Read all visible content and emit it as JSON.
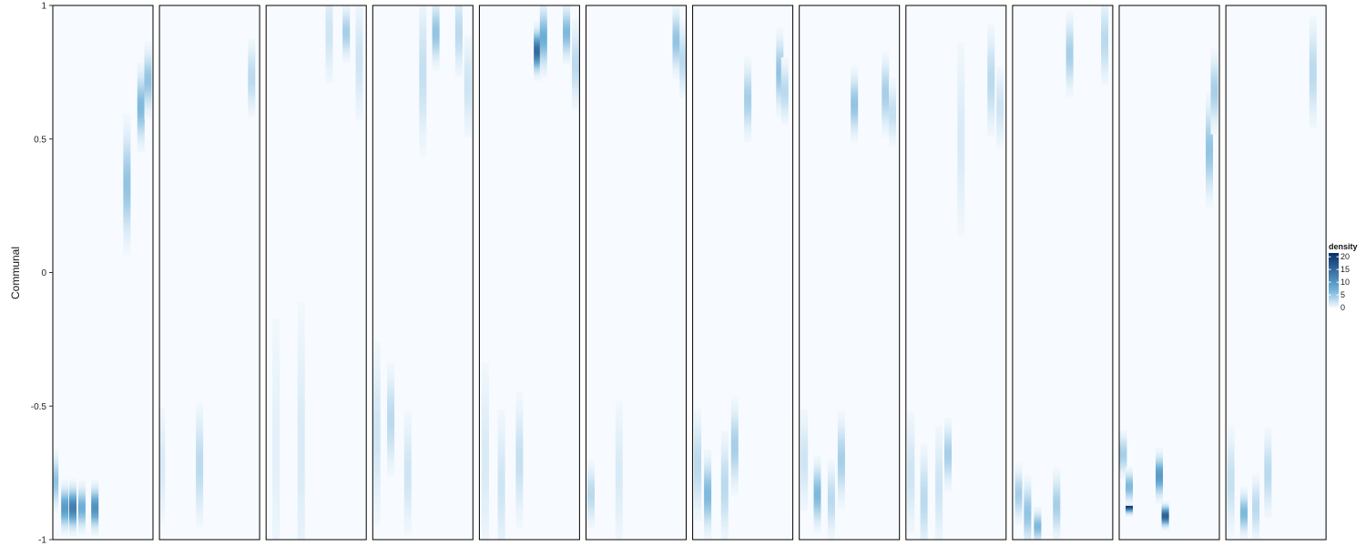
{
  "chart_data": {
    "type": "heatmap",
    "title": "",
    "xlabel": "",
    "ylabel": "Communal",
    "ylim": [
      -1,
      1
    ],
    "yticks": [
      1,
      0.5,
      0,
      -0.5,
      -1
    ],
    "ytick_labels": [
      "1",
      "0.5",
      "0",
      "-0.5",
      "-1"
    ],
    "grid": false,
    "facets": 12,
    "color_scale": {
      "name": "density",
      "min": 0,
      "max": 20,
      "low_color": "#f7fbff",
      "high_color": "#08306b",
      "breaks": [
        0,
        5,
        10,
        15,
        20
      ],
      "break_labels": [
        "0",
        "5",
        "10",
        "15",
        "20"
      ]
    },
    "legend_position": "right",
    "series": [
      {
        "columns": [
          {
            "x": 0.02,
            "y": -0.78,
            "sd": 0.05,
            "density": 5
          },
          {
            "x": 0.12,
            "y": -0.88,
            "sd": 0.04,
            "density": 9
          },
          {
            "x": 0.2,
            "y": -0.88,
            "sd": 0.04,
            "density": 12
          },
          {
            "x": 0.29,
            "y": -0.88,
            "sd": 0.04,
            "density": 7
          },
          {
            "x": 0.42,
            "y": -0.88,
            "sd": 0.04,
            "density": 10
          },
          {
            "x": 0.74,
            "y": 0.33,
            "sd": 0.11,
            "density": 5
          },
          {
            "x": 0.88,
            "y": 0.62,
            "sd": 0.07,
            "density": 6
          },
          {
            "x": 0.95,
            "y": 0.72,
            "sd": 0.06,
            "density": 5
          }
        ]
      },
      {
        "columns": [
          {
            "x": 0.02,
            "y": -0.72,
            "sd": 0.12,
            "density": 1.5
          },
          {
            "x": 0.4,
            "y": -0.72,
            "sd": 0.11,
            "density": 3
          },
          {
            "x": 0.92,
            "y": 0.73,
            "sd": 0.07,
            "density": 3
          }
        ]
      },
      {
        "columns": [
          {
            "x": 0.1,
            "y": -0.65,
            "sd": 0.3,
            "density": 1
          },
          {
            "x": 0.35,
            "y": -0.65,
            "sd": 0.3,
            "density": 1.5
          },
          {
            "x": 0.63,
            "y": 0.9,
            "sd": 0.1,
            "density": 2
          },
          {
            "x": 0.8,
            "y": 0.9,
            "sd": 0.05,
            "density": 4
          },
          {
            "x": 0.93,
            "y": 0.8,
            "sd": 0.12,
            "density": 2
          }
        ]
      },
      {
        "columns": [
          {
            "x": 0.04,
            "y": -0.6,
            "sd": 0.18,
            "density": 2
          },
          {
            "x": 0.18,
            "y": -0.55,
            "sd": 0.1,
            "density": 3
          },
          {
            "x": 0.35,
            "y": -0.75,
            "sd": 0.12,
            "density": 2
          },
          {
            "x": 0.5,
            "y": 0.75,
            "sd": 0.15,
            "density": 2.5
          },
          {
            "x": 0.63,
            "y": 0.9,
            "sd": 0.06,
            "density": 5
          },
          {
            "x": 0.86,
            "y": 0.9,
            "sd": 0.08,
            "density": 3
          },
          {
            "x": 0.95,
            "y": 0.7,
            "sd": 0.1,
            "density": 2
          }
        ]
      },
      {
        "columns": [
          {
            "x": 0.06,
            "y": -0.7,
            "sd": 0.2,
            "density": 1.5
          },
          {
            "x": 0.22,
            "y": -0.8,
            "sd": 0.15,
            "density": 2
          },
          {
            "x": 0.4,
            "y": -0.7,
            "sd": 0.12,
            "density": 2.5
          },
          {
            "x": 0.58,
            "y": 0.83,
            "sd": 0.04,
            "density": 14
          },
          {
            "x": 0.64,
            "y": 0.88,
            "sd": 0.06,
            "density": 7
          },
          {
            "x": 0.87,
            "y": 0.9,
            "sd": 0.05,
            "density": 6
          },
          {
            "x": 0.96,
            "y": 0.78,
            "sd": 0.08,
            "density": 3
          }
        ]
      },
      {
        "columns": [
          {
            "x": 0.05,
            "y": -0.83,
            "sd": 0.06,
            "density": 3
          },
          {
            "x": 0.33,
            "y": -0.75,
            "sd": 0.15,
            "density": 1.5
          },
          {
            "x": 0.9,
            "y": 0.87,
            "sd": 0.06,
            "density": 5
          },
          {
            "x": 0.97,
            "y": 0.8,
            "sd": 0.07,
            "density": 3
          }
        ]
      },
      {
        "columns": [
          {
            "x": 0.05,
            "y": -0.72,
            "sd": 0.1,
            "density": 3
          },
          {
            "x": 0.15,
            "y": -0.83,
            "sd": 0.07,
            "density": 6
          },
          {
            "x": 0.32,
            "y": -0.8,
            "sd": 0.1,
            "density": 3
          },
          {
            "x": 0.42,
            "y": -0.65,
            "sd": 0.08,
            "density": 4
          },
          {
            "x": 0.55,
            "y": 0.65,
            "sd": 0.07,
            "density": 4
          },
          {
            "x": 0.87,
            "y": 0.75,
            "sd": 0.07,
            "density": 5
          },
          {
            "x": 0.92,
            "y": 0.68,
            "sd": 0.06,
            "density": 3
          }
        ]
      },
      {
        "columns": [
          {
            "x": 0.05,
            "y": -0.7,
            "sd": 0.1,
            "density": 2
          },
          {
            "x": 0.18,
            "y": -0.83,
            "sd": 0.06,
            "density": 6
          },
          {
            "x": 0.32,
            "y": -0.85,
            "sd": 0.07,
            "density": 3
          },
          {
            "x": 0.42,
            "y": -0.7,
            "sd": 0.08,
            "density": 4
          },
          {
            "x": 0.55,
            "y": 0.63,
            "sd": 0.06,
            "density": 5
          },
          {
            "x": 0.86,
            "y": 0.67,
            "sd": 0.07,
            "density": 4
          },
          {
            "x": 0.93,
            "y": 0.6,
            "sd": 0.06,
            "density": 2.5
          }
        ]
      },
      {
        "columns": [
          {
            "x": 0.05,
            "y": -0.75,
            "sd": 0.12,
            "density": 2
          },
          {
            "x": 0.18,
            "y": -0.85,
            "sd": 0.1,
            "density": 3
          },
          {
            "x": 0.33,
            "y": -0.8,
            "sd": 0.12,
            "density": 2
          },
          {
            "x": 0.42,
            "y": -0.68,
            "sd": 0.06,
            "density": 4
          },
          {
            "x": 0.55,
            "y": 0.5,
            "sd": 0.2,
            "density": 1.5
          },
          {
            "x": 0.85,
            "y": 0.72,
            "sd": 0.1,
            "density": 3
          },
          {
            "x": 0.94,
            "y": 0.62,
            "sd": 0.08,
            "density": 2
          }
        ]
      },
      {
        "columns": [
          {
            "x": 0.06,
            "y": -0.83,
            "sd": 0.05,
            "density": 4
          },
          {
            "x": 0.15,
            "y": -0.9,
            "sd": 0.06,
            "density": 5
          },
          {
            "x": 0.25,
            "y": -0.95,
            "sd": 0.03,
            "density": 6
          },
          {
            "x": 0.44,
            "y": -0.87,
            "sd": 0.06,
            "density": 4
          },
          {
            "x": 0.57,
            "y": 0.82,
            "sd": 0.07,
            "density": 4
          },
          {
            "x": 0.92,
            "y": 0.87,
            "sd": 0.08,
            "density": 3
          }
        ]
      },
      {
        "columns": [
          {
            "x": 0.04,
            "y": -0.68,
            "sd": 0.04,
            "density": 4
          },
          {
            "x": 0.1,
            "y": -0.87,
            "sd": 0.015,
            "density": 20
          },
          {
            "x": 0.1,
            "y": -0.8,
            "sd": 0.03,
            "density": 6
          },
          {
            "x": 0.4,
            "y": -0.76,
            "sd": 0.04,
            "density": 9
          },
          {
            "x": 0.46,
            "y": -0.91,
            "sd": 0.02,
            "density": 15
          },
          {
            "x": 0.9,
            "y": 0.46,
            "sd": 0.09,
            "density": 5
          },
          {
            "x": 0.95,
            "y": 0.68,
            "sd": 0.07,
            "density": 4
          }
        ]
      },
      {
        "columns": [
          {
            "x": 0.05,
            "y": -0.78,
            "sd": 0.1,
            "density": 2.5
          },
          {
            "x": 0.18,
            "y": -0.9,
            "sd": 0.04,
            "density": 6
          },
          {
            "x": 0.3,
            "y": -0.88,
            "sd": 0.06,
            "density": 3
          },
          {
            "x": 0.42,
            "y": -0.75,
            "sd": 0.08,
            "density": 3
          },
          {
            "x": 0.87,
            "y": 0.75,
            "sd": 0.1,
            "density": 3
          }
        ]
      }
    ]
  }
}
